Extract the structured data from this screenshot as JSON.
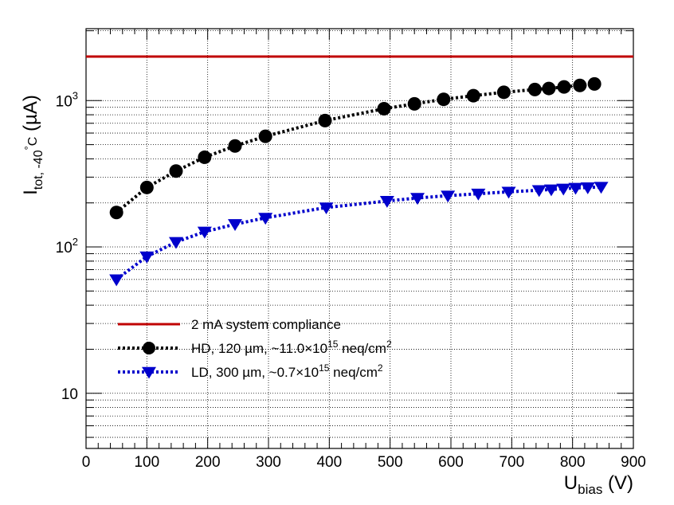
{
  "chart_data": {
    "type": "line",
    "yscale": "log",
    "xlim": [
      0,
      900
    ],
    "ylim": [
      4.2,
      3100
    ],
    "grid": true,
    "xlabel": {
      "main": "U",
      "sub": "bias",
      "unit": " (V)"
    },
    "ylabel": {
      "main": "I",
      "sub": "tot, -40",
      "deg": "°",
      "c": "C",
      "unit": " (µA)"
    },
    "x_ticks": [
      0,
      100,
      200,
      300,
      400,
      500,
      600,
      700,
      800,
      900
    ],
    "x_tick_labels": [
      "0",
      "100",
      "200",
      "300",
      "400",
      "500",
      "600",
      "700",
      "800",
      "900"
    ],
    "y_ticks": [
      {
        "value": 10,
        "base": "10",
        "exp": ""
      },
      {
        "value": 100,
        "base": "10",
        "exp": "2"
      },
      {
        "value": 1000,
        "base": "10",
        "exp": "3"
      }
    ],
    "reference_line": {
      "name": "2 mA system compliance",
      "y": 2000,
      "color": "#c00000"
    },
    "series": [
      {
        "name": "HD",
        "legend": {
          "prefix": "HD, 120 ",
          "mu": "µ",
          "mid": "m, ~11.0×10",
          "exp": "15",
          "suffix": " neq/cm",
          "exp2": "2"
        },
        "color": "#000000",
        "marker": "circle",
        "x": [
          50,
          100,
          148,
          195,
          245,
          295,
          393,
          490,
          540,
          588,
          637,
          687,
          738,
          761,
          786,
          812,
          836
        ],
        "y": [
          172,
          255,
          330,
          410,
          490,
          570,
          730,
          880,
          950,
          1020,
          1080,
          1140,
          1190,
          1210,
          1240,
          1270,
          1300
        ]
      },
      {
        "name": "LD",
        "legend": {
          "prefix": "LD,  300 ",
          "mu": "µ",
          "mid": "m, ~0.7×10",
          "exp": "15",
          "suffix": " neq/cm",
          "exp2": "2"
        },
        "color": "#0000cc",
        "marker": "triangle-down",
        "x": [
          50,
          100,
          148,
          195,
          245,
          295,
          395,
          495,
          545,
          595,
          645,
          695,
          745,
          765,
          785,
          805,
          825,
          847
        ],
        "y": [
          60,
          86,
          108,
          127,
          143,
          158,
          186,
          206,
          216,
          224,
          231,
          238,
          244,
          247,
          250,
          253,
          255,
          257
        ]
      }
    ]
  }
}
